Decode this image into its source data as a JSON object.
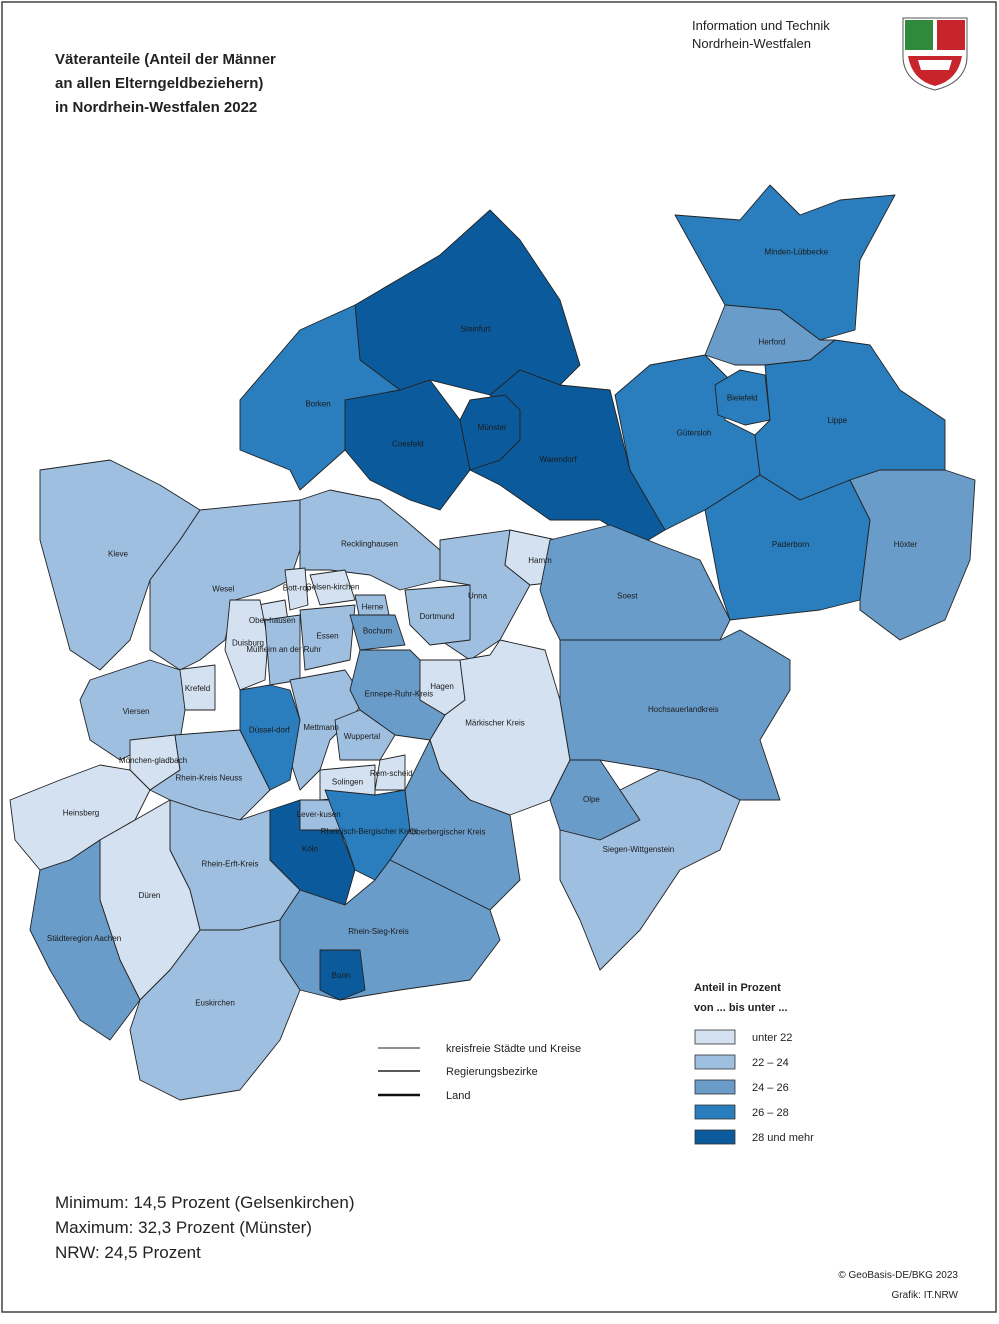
{
  "header": {
    "title_lines": [
      "Väteranteile (Anteil der Männer",
      "an allen Elterngeldbeziehern)",
      "in Nordrhein-Westfalen 2022"
    ],
    "org_lines": [
      "Information und Technik",
      "Nordrhein-Westfalen"
    ]
  },
  "legend": {
    "title_lines": [
      "Anteil in Prozent",
      "von ... bis unter ..."
    ],
    "classes": [
      {
        "label": "unter 22",
        "color": "#d3e1f0"
      },
      {
        "label": "22 – 24",
        "color": "#9fbfe0"
      },
      {
        "label": "24 – 26",
        "color": "#6a9cca"
      },
      {
        "label": "26 – 28",
        "color": "#2a7ebd"
      },
      {
        "label": "28 und mehr",
        "color": "#0b5b9c"
      }
    ],
    "boundaries": [
      "kreisfreie Städte und Kreise",
      "Regierungsbezirke",
      "Land"
    ]
  },
  "regions": [
    {
      "name": "Steinfurt",
      "class": 4
    },
    {
      "name": "Borken",
      "class": 3
    },
    {
      "name": "Coesfeld",
      "class": 4
    },
    {
      "name": "Warendorf",
      "class": 4
    },
    {
      "name": "Münster",
      "class": 4
    },
    {
      "name": "Minden-Lübbecke",
      "class": 3
    },
    {
      "name": "Herford",
      "class": 2
    },
    {
      "name": "Gütersloh",
      "class": 3
    },
    {
      "name": "Lippe",
      "class": 3
    },
    {
      "name": "Bielefeld",
      "class": 3
    },
    {
      "name": "Paderborn",
      "class": 3
    },
    {
      "name": "Höxter",
      "class": 2
    },
    {
      "name": "Kleve",
      "class": 1
    },
    {
      "name": "Wesel",
      "class": 1
    },
    {
      "name": "Recklinghausen",
      "class": 1
    },
    {
      "name": "Unna",
      "class": 1
    },
    {
      "name": "Hamm",
      "class": 0
    },
    {
      "name": "Soest",
      "class": 2
    },
    {
      "name": "Bott-rop",
      "class": 0
    },
    {
      "name": "Gelsen-kirchen",
      "class": 0
    },
    {
      "name": "Ober-hausen",
      "class": 0
    },
    {
      "name": "Herne",
      "class": 1
    },
    {
      "name": "Duisburg",
      "class": 0
    },
    {
      "name": "Mülheim an der Ruhr",
      "class": 1
    },
    {
      "name": "Essen",
      "class": 1
    },
    {
      "name": "Bochum",
      "class": 2
    },
    {
      "name": "Dortmund",
      "class": 1
    },
    {
      "name": "Krefeld",
      "class": 0
    },
    {
      "name": "Viersen",
      "class": 1
    },
    {
      "name": "Mönchen-gladbach",
      "class": 0
    },
    {
      "name": "Heinsberg",
      "class": 0
    },
    {
      "name": "Mettmann",
      "class": 1
    },
    {
      "name": "Rhein-Kreis Neuss",
      "class": 1
    },
    {
      "name": "Düssel-dorf",
      "class": 3
    },
    {
      "name": "Ennepe-Ruhr-Kreis",
      "class": 2
    },
    {
      "name": "Hagen",
      "class": 0
    },
    {
      "name": "Wuppertal",
      "class": 1
    },
    {
      "name": "Rem-scheid",
      "class": 0
    },
    {
      "name": "Solingen",
      "class": 0
    },
    {
      "name": "Märkischer Kreis",
      "class": 0
    },
    {
      "name": "Hochsauerlandkreis",
      "class": 2
    },
    {
      "name": "Olpe",
      "class": 2
    },
    {
      "name": "Rhein-Erft-Kreis",
      "class": 1
    },
    {
      "name": "Köln",
      "class": 4
    },
    {
      "name": "Lever-kusen",
      "class": 1
    },
    {
      "name": "Rheinisch-Bergischer Kreis",
      "class": 3
    },
    {
      "name": "Oberbergischer Kreis",
      "class": 2
    },
    {
      "name": "Siegen-Wittgenstein",
      "class": 1
    },
    {
      "name": "Düren",
      "class": 0
    },
    {
      "name": "Städteregion Aachen",
      "class": 2
    },
    {
      "name": "Rhein-Sieg-Kreis",
      "class": 2
    },
    {
      "name": "Euskirchen",
      "class": 1
    },
    {
      "name": "Bonn",
      "class": 4
    }
  ],
  "stats": [
    "Minimum: 14,5 Prozent (Gelsenkirchen)",
    "Maximum: 32,3 Prozent (Münster)",
    "NRW: 24,5 Prozent"
  ],
  "credits": [
    "© GeoBasis-DE/BKG 2023",
    "Grafik: IT.NRW"
  ]
}
